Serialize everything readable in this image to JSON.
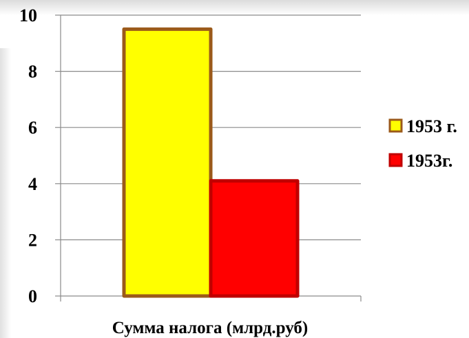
{
  "chart_data": {
    "type": "bar",
    "categories": [
      "Сумма налога (млрд.руб)"
    ],
    "xlabel": "Сумма налога (млрд.руб)",
    "ylim": [
      0,
      10
    ],
    "yticks": [
      0,
      2,
      4,
      6,
      8,
      10
    ],
    "grid": true,
    "legend_position": "right",
    "series": [
      {
        "name": "1953 г.",
        "values": [
          9.5
        ],
        "fill": "#ffff00",
        "stroke": "#9b5a1a"
      },
      {
        "name": "1953г.",
        "values": [
          4.1
        ],
        "fill": "#ff0000",
        "stroke": "#c00000"
      }
    ]
  }
}
